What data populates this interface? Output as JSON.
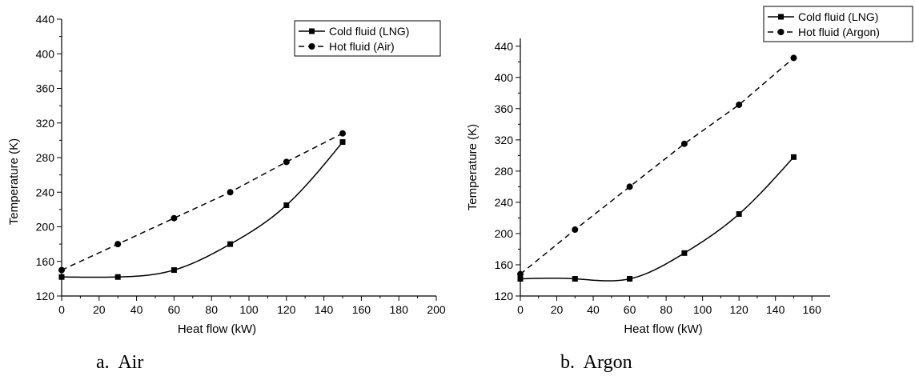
{
  "chart_data": [
    {
      "type": "line",
      "caption": "a.  Air",
      "xlabel": "Heat flow (kW)",
      "ylabel": "Temperature (K)",
      "xlim": [
        0,
        200
      ],
      "ylim": [
        120,
        440
      ],
      "xticks": [
        0,
        20,
        40,
        60,
        80,
        100,
        120,
        140,
        160,
        180,
        200
      ],
      "yticks": [
        120,
        160,
        200,
        240,
        280,
        320,
        360,
        400,
        440
      ],
      "grid": false,
      "legend_position": "top-right",
      "series": [
        {
          "name": "Cold fluid (LNG)",
          "marker": "square",
          "line": "solid",
          "x": [
            0,
            30,
            60,
            90,
            120,
            150
          ],
          "y": [
            142,
            142,
            150,
            180,
            225,
            298
          ]
        },
        {
          "name": "Hot fluid (Air)",
          "marker": "circle",
          "line": "dashed",
          "x": [
            0,
            30,
            60,
            90,
            120,
            150
          ],
          "y": [
            150,
            180,
            210,
            240,
            275,
            308
          ]
        }
      ]
    },
    {
      "type": "line",
      "caption": "b.  Argon",
      "xlabel": "Heat flow (kW)",
      "ylabel": "Temperature (K)",
      "xlim": [
        0,
        170
      ],
      "ylim": [
        120,
        450
      ],
      "xticks": [
        0,
        20,
        40,
        60,
        80,
        100,
        120,
        140,
        160
      ],
      "yticks": [
        120,
        160,
        200,
        240,
        280,
        320,
        360,
        400,
        440
      ],
      "grid": false,
      "legend_position": "top-right",
      "series": [
        {
          "name": "Cold fluid (LNG)",
          "marker": "square",
          "line": "solid",
          "x": [
            0,
            30,
            60,
            90,
            120,
            150
          ],
          "y": [
            142,
            142,
            142,
            175,
            225,
            298
          ]
        },
        {
          "name": "Hot fluid (Argon)",
          "marker": "circle",
          "line": "dashed",
          "x": [
            0,
            30,
            60,
            90,
            120,
            150
          ],
          "y": [
            148,
            205,
            260,
            315,
            365,
            425
          ]
        }
      ]
    }
  ]
}
